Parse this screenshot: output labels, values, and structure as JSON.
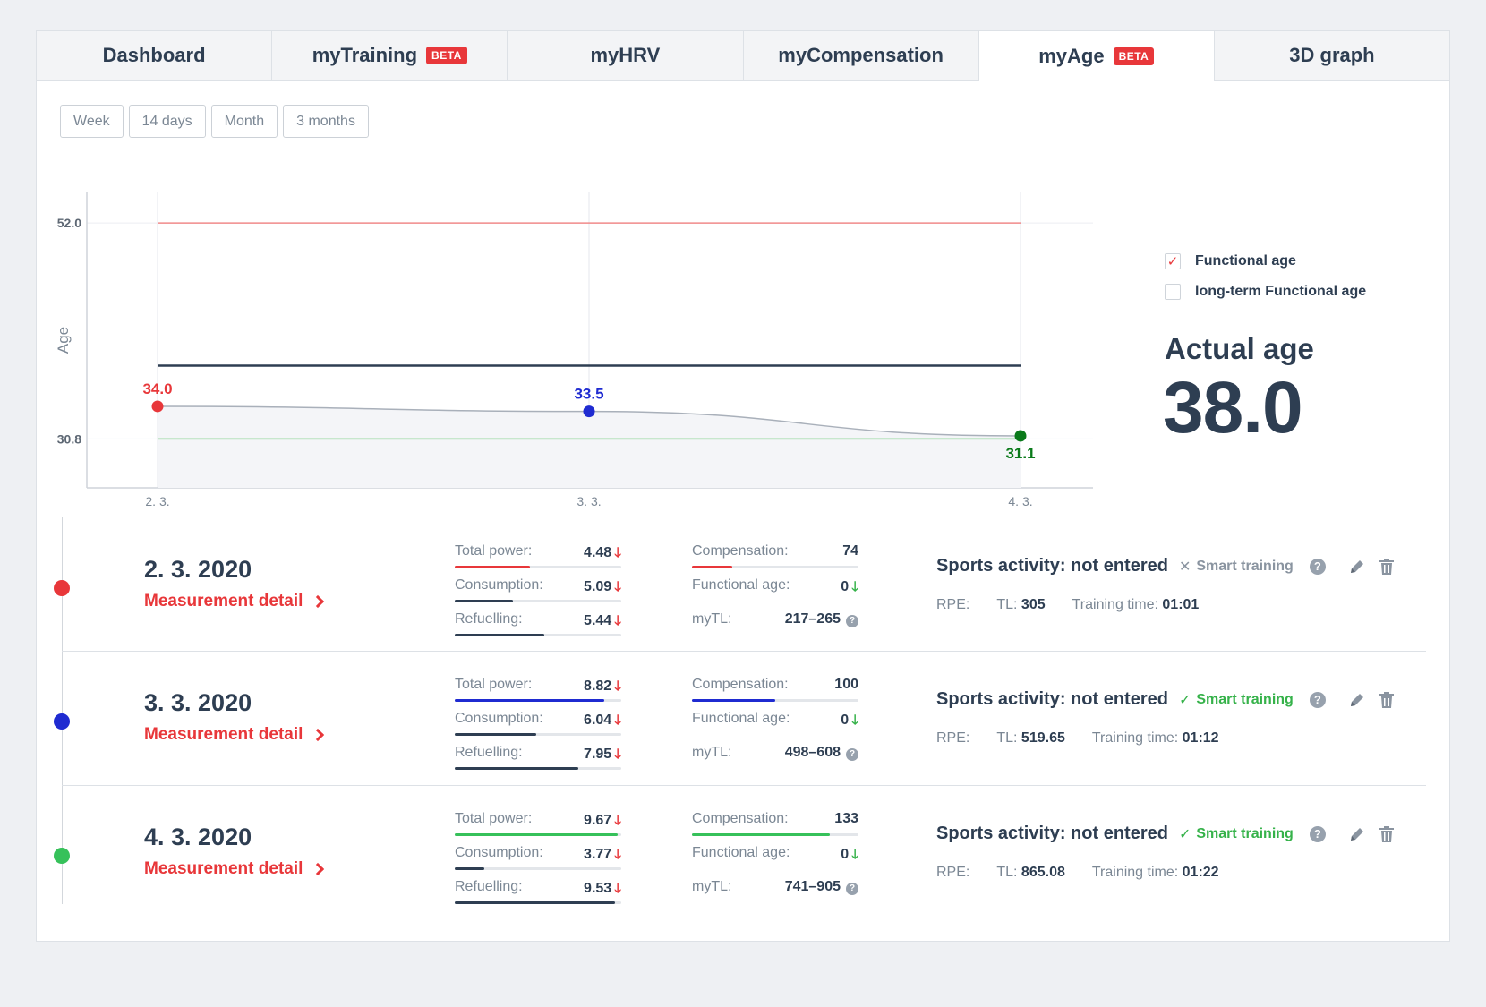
{
  "tabs": [
    {
      "label": "Dashboard",
      "beta": ""
    },
    {
      "label": "myTraining",
      "beta": "BETA"
    },
    {
      "label": "myHRV",
      "beta": ""
    },
    {
      "label": "myCompensation",
      "beta": ""
    },
    {
      "label": "myAge",
      "beta": "BETA"
    },
    {
      "label": "3D graph",
      "beta": ""
    }
  ],
  "active_tab": "myAge",
  "periods": [
    "Week",
    "14 days",
    "Month",
    "3 months"
  ],
  "chart_data": {
    "type": "line",
    "ylabel": "Age",
    "x": [
      "2. 3.",
      "3. 3.",
      "4. 3."
    ],
    "y_ticks": [
      "52.0",
      "30.8"
    ],
    "ylim": [
      26.0,
      55.0
    ],
    "reference_lines": [
      {
        "value": 52.0,
        "color": "#f08a8a"
      },
      {
        "value": 38.0,
        "color": "#2e3e52"
      },
      {
        "value": 30.8,
        "color": "#7ccf86"
      }
    ],
    "series": [
      {
        "values": [
          34.0,
          33.5,
          31.1
        ],
        "labels": [
          "34.0",
          "33.5",
          "31.1"
        ],
        "point_colors": [
          "#e8373a",
          "#1f2bd1",
          "#0a7a1a"
        ]
      }
    ],
    "grid": true
  },
  "legend": [
    {
      "label": "Functional age",
      "checked": true
    },
    {
      "label": "long-term Functional age",
      "checked": false
    }
  ],
  "actual_age": {
    "label": "Actual age",
    "value": "38.0"
  },
  "measurements": [
    {
      "date": "2. 3. 2020",
      "dot_color": "#e8373a",
      "detail_label": "Measurement detail",
      "total_power": {
        "label": "Total power:",
        "value": "4.48",
        "fill": 0.45,
        "color": "#e8373a"
      },
      "consumption": {
        "label": "Consumption:",
        "value": "5.09",
        "fill": 0.35,
        "color": "#2e3e52"
      },
      "refuelling": {
        "label": "Refuelling:",
        "value": "5.44",
        "fill": 0.54,
        "color": "#2e3e52"
      },
      "compensation": {
        "label": "Compensation:",
        "value": "74",
        "fill": 0.24,
        "color": "#e8373a"
      },
      "functional_age": {
        "label": "Functional age:",
        "value": "0"
      },
      "mytl": {
        "label": "myTL:",
        "value": "217–265"
      },
      "sports_activity": "Sports activity: not entered",
      "smart_training": {
        "label": "Smart training",
        "enabled": false
      },
      "rpe_label": "RPE:",
      "tl_label": "TL:",
      "tl_value": "305",
      "time_label": "Training time:",
      "time_value": "01:01"
    },
    {
      "date": "3. 3. 2020",
      "dot_color": "#1f2bd1",
      "detail_label": "Measurement detail",
      "total_power": {
        "label": "Total power:",
        "value": "8.82",
        "fill": 0.9,
        "color": "#1f2bd1"
      },
      "consumption": {
        "label": "Consumption:",
        "value": "6.04",
        "fill": 0.49,
        "color": "#2e3e52"
      },
      "refuelling": {
        "label": "Refuelling:",
        "value": "7.95",
        "fill": 0.74,
        "color": "#2e3e52"
      },
      "compensation": {
        "label": "Compensation:",
        "value": "100",
        "fill": 0.5,
        "color": "#1f2bd1"
      },
      "functional_age": {
        "label": "Functional age:",
        "value": "0"
      },
      "mytl": {
        "label": "myTL:",
        "value": "498–608"
      },
      "sports_activity": "Sports activity: not entered",
      "smart_training": {
        "label": "Smart training",
        "enabled": true
      },
      "rpe_label": "RPE:",
      "tl_label": "TL:",
      "tl_value": "519.65",
      "time_label": "Training time:",
      "time_value": "01:12"
    },
    {
      "date": "4. 3. 2020",
      "dot_color": "#36c15a",
      "detail_label": "Measurement detail",
      "total_power": {
        "label": "Total power:",
        "value": "9.67",
        "fill": 0.98,
        "color": "#36c15a"
      },
      "consumption": {
        "label": "Consumption:",
        "value": "3.77",
        "fill": 0.18,
        "color": "#2e3e52"
      },
      "refuelling": {
        "label": "Refuelling:",
        "value": "9.53",
        "fill": 0.96,
        "color": "#2e3e52"
      },
      "compensation": {
        "label": "Compensation:",
        "value": "133",
        "fill": 0.83,
        "color": "#36c15a"
      },
      "functional_age": {
        "label": "Functional age:",
        "value": "0"
      },
      "mytl": {
        "label": "myTL:",
        "value": "741–905"
      },
      "sports_activity": "Sports activity: not entered",
      "smart_training": {
        "label": "Smart training",
        "enabled": true
      },
      "rpe_label": "RPE:",
      "tl_label": "TL:",
      "tl_value": "865.08",
      "time_label": "Training time:",
      "time_value": "01:22"
    }
  ]
}
